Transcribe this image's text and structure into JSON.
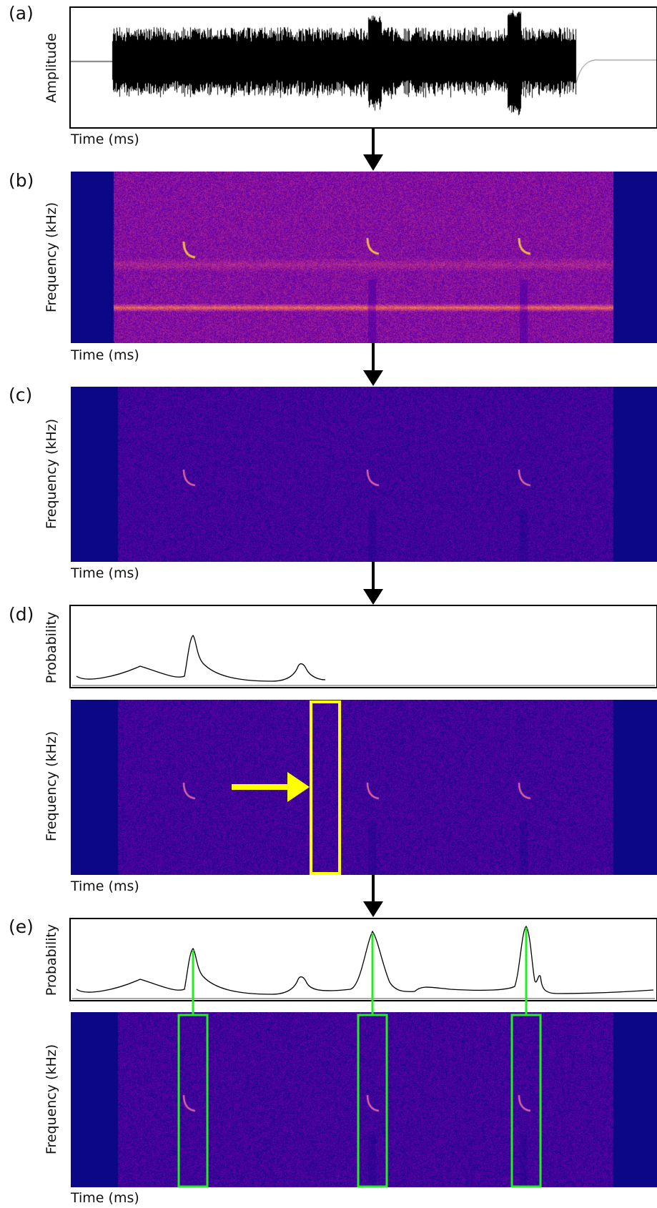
{
  "panels": {
    "a": {
      "letter": "(a)",
      "ylabel": "Amplitude",
      "xlabel": "Time (ms)"
    },
    "b": {
      "letter": "(b)",
      "ylabel": "Frequency (kHz)",
      "xlabel": "Time (ms)"
    },
    "c": {
      "letter": "(c)",
      "ylabel": "Frequency (kHz)",
      "xlabel": "Time (ms)"
    },
    "d": {
      "letter": "(d)",
      "prob_ylabel": "Probability",
      "ylabel": "Frequency (kHz)",
      "xlabel": "Time (ms)"
    },
    "e": {
      "letter": "(e)",
      "prob_ylabel": "Probability",
      "ylabel": "Frequency (kHz)",
      "xlabel": "Time (ms)"
    }
  },
  "colors": {
    "spectrogram_background": "#0c0787",
    "highlight_box_d": "#ffff00",
    "detection_boxes_e": "#22ee22",
    "arrow": "#000000"
  }
}
